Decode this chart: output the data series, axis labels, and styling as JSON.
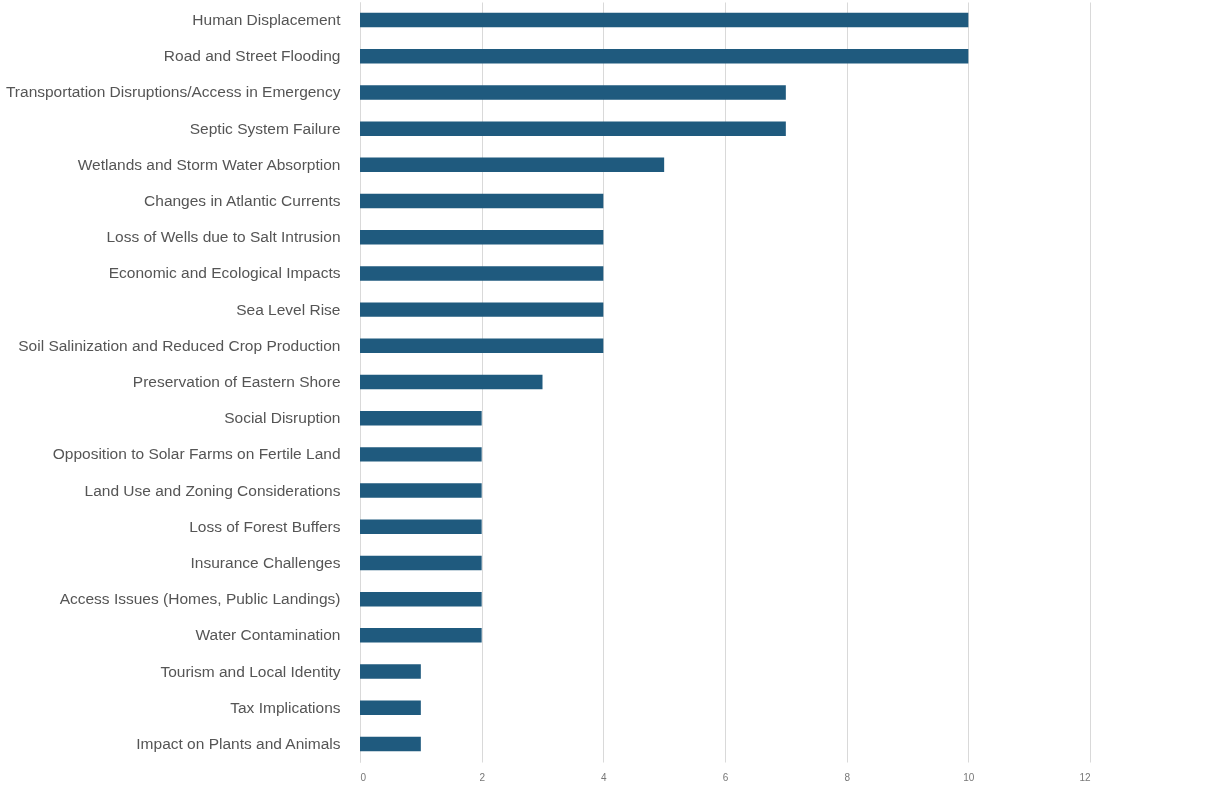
{
  "chart_data": {
    "type": "bar",
    "orientation": "horizontal",
    "categories": [
      "Human Displacement",
      "Road and Street Flooding",
      "Transportation Disruptions/Access in Emergency",
      "Septic System Failure",
      "Wetlands and Storm Water Absorption",
      "Changes in Atlantic Currents",
      "Loss of Wells due to Salt Intrusion",
      "Economic and Ecological Impacts",
      "Sea Level Rise",
      "Soil Salinization and Reduced Crop Production",
      "Preservation of Eastern Shore",
      "Social Disruption",
      "Opposition to Solar Farms on Fertile Land",
      "Land Use and Zoning Considerations",
      "Loss of Forest Buffers",
      "Insurance Challenges",
      "Access Issues (Homes, Public Landings)",
      "Water Contamination",
      "Tourism and Local Identity",
      "Tax Implications",
      "Impact on Plants and Animals"
    ],
    "values": [
      10,
      10,
      7,
      7,
      5,
      4,
      4,
      4,
      4,
      4,
      3,
      2,
      2,
      2,
      2,
      2,
      2,
      2,
      1,
      1,
      1
    ],
    "color": "#1f5a7e",
    "xlim": [
      0,
      12
    ],
    "xticks": [
      0,
      2,
      4,
      6,
      8,
      10,
      12
    ],
    "grid": "x"
  }
}
